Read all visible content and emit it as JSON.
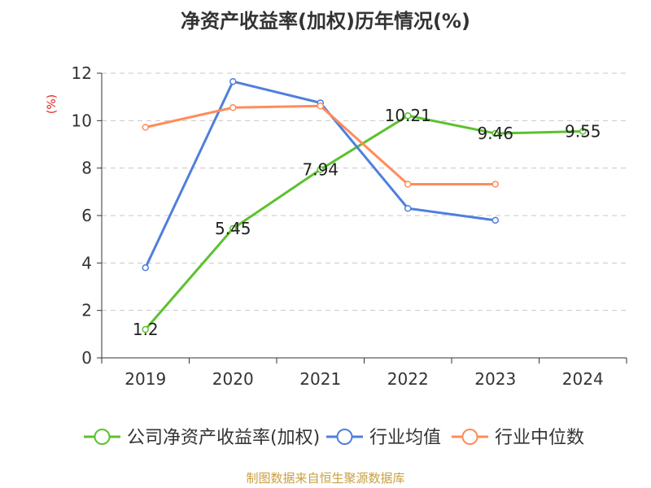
{
  "chart_data": {
    "type": "line",
    "title": "净资产收益率(加权)历年情况(%)",
    "ylabel": "(%)",
    "categories": [
      "2019",
      "2020",
      "2021",
      "2022",
      "2023",
      "2024"
    ],
    "yticks": [
      0,
      2,
      4,
      6,
      8,
      10,
      12
    ],
    "ylim": [
      0,
      12
    ],
    "grid": true,
    "legend_position": "bottom",
    "series": [
      {
        "name": "公司净资产收益率(加权)",
        "color": "#5cc22f",
        "values": [
          1.2,
          5.45,
          7.94,
          10.21,
          9.46,
          9.55
        ],
        "labels": [
          "1.2",
          "5.45",
          "7.94",
          "10.21",
          "9.46",
          "9.55"
        ]
      },
      {
        "name": "行业均值",
        "color": "#4f7fdc",
        "values": [
          3.8,
          11.65,
          10.75,
          6.3,
          5.8,
          null
        ]
      },
      {
        "name": "行业中位数",
        "color": "#ff8c5a",
        "values": [
          9.72,
          10.55,
          10.62,
          7.32,
          7.32,
          null
        ]
      }
    ]
  },
  "footer": {
    "source": "制图数据来自恒生聚源数据库",
    "source_color": "#c9a043"
  }
}
